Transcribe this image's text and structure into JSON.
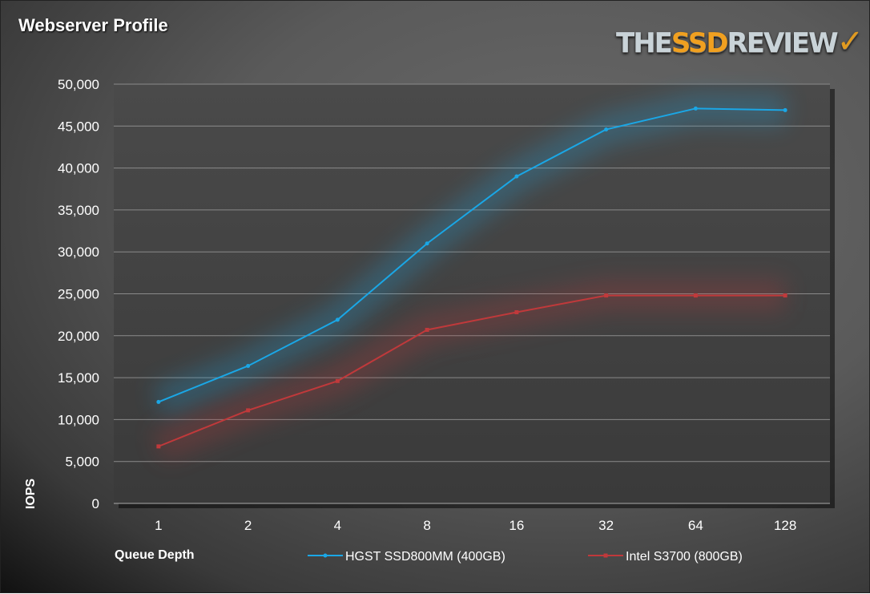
{
  "chart_data": {
    "type": "line",
    "title": "Webserver Profile",
    "xlabel": "Queue Depth",
    "ylabel": "IOPS",
    "categories": [
      "1",
      "2",
      "4",
      "8",
      "16",
      "32",
      "64",
      "128"
    ],
    "ylim": [
      0,
      50000
    ],
    "yticks": [
      0,
      5000,
      10000,
      15000,
      20000,
      25000,
      30000,
      35000,
      40000,
      45000,
      50000
    ],
    "ytick_labels": [
      "0",
      "5,000",
      "10,000",
      "15,000",
      "20,000",
      "25,000",
      "30,000",
      "35,000",
      "40,000",
      "45,000",
      "50,000"
    ],
    "grid": true,
    "legend_position": "bottom",
    "series": [
      {
        "name": "HGST SSD800MM (400GB)",
        "color": "#1aa7e6",
        "values": [
          12100,
          16400,
          21900,
          31000,
          39000,
          44600,
          47100,
          46900
        ]
      },
      {
        "name": "Intel S3700 (800GB)",
        "color": "#c0393b",
        "values": [
          6800,
          11100,
          14600,
          20700,
          22800,
          24800,
          24800,
          24800
        ]
      }
    ]
  },
  "logo": {
    "text_pre": "THE",
    "text_mid": "SSD",
    "text_post": "REVIEW",
    "mark": "✓"
  }
}
